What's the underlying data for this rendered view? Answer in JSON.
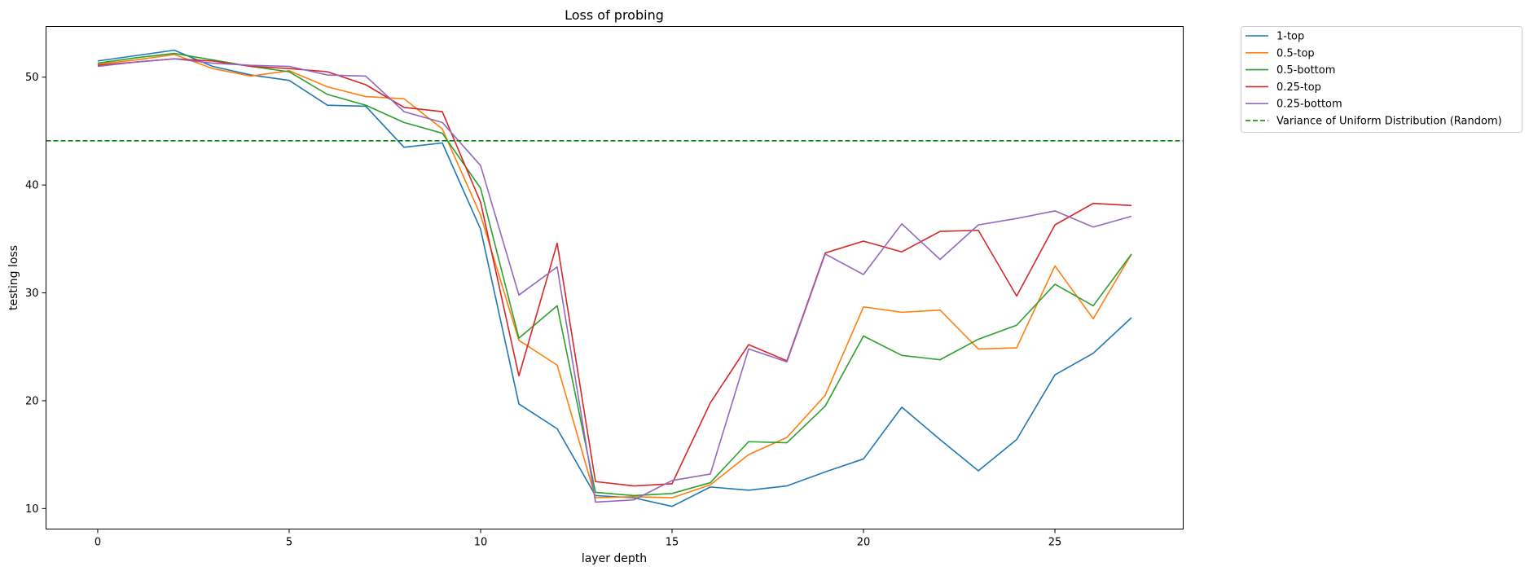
{
  "chart_data": {
    "type": "line",
    "title": "Loss of probing",
    "xlabel": "layer depth",
    "ylabel": "testing loss",
    "xlim": [
      -1.35,
      28.35
    ],
    "ylim": [
      8.1,
      54.7
    ],
    "xticks": [
      0,
      5,
      10,
      15,
      20,
      25
    ],
    "yticks": [
      10,
      20,
      30,
      40,
      50
    ],
    "grid": false,
    "legend_placement": "outside top-right",
    "x": [
      0,
      1,
      2,
      3,
      4,
      5,
      6,
      7,
      8,
      9,
      10,
      11,
      12,
      13,
      14,
      15,
      16,
      17,
      18,
      19,
      20,
      21,
      22,
      23,
      24,
      25,
      26,
      27
    ],
    "series": [
      {
        "name": "1-top",
        "color": "#1f77b4",
        "style": "solid",
        "values": [
          51.5,
          52.0,
          52.5,
          51.0,
          50.2,
          49.7,
          47.4,
          47.3,
          43.5,
          43.9,
          35.9,
          19.7,
          17.4,
          11.2,
          11.0,
          10.2,
          12.0,
          11.7,
          12.1,
          13.4,
          14.6,
          19.4,
          16.4,
          13.5,
          16.4,
          22.4,
          24.4,
          27.7
        ]
      },
      {
        "name": "0.5-top",
        "color": "#ff7f0e",
        "style": "solid",
        "values": [
          51.2,
          51.6,
          52.1,
          50.8,
          50.1,
          50.6,
          49.1,
          48.2,
          48.0,
          45.2,
          37.2,
          25.6,
          23.3,
          11.0,
          11.1,
          11.0,
          12.2,
          15.0,
          16.6,
          20.5,
          28.7,
          28.2,
          28.4,
          24.8,
          24.9,
          32.5,
          27.6,
          33.6
        ]
      },
      {
        "name": "0.5-bottom",
        "color": "#2ca02c",
        "style": "solid",
        "values": [
          51.3,
          51.8,
          52.2,
          51.6,
          51.0,
          50.5,
          48.4,
          47.4,
          45.8,
          44.8,
          39.7,
          25.8,
          28.8,
          11.5,
          11.2,
          11.4,
          12.4,
          16.2,
          16.1,
          19.5,
          26.0,
          24.2,
          23.8,
          25.7,
          27.0,
          30.8,
          28.8,
          33.6
        ]
      },
      {
        "name": "0.25-top",
        "color": "#d62728",
        "style": "solid",
        "values": [
          51.1,
          51.4,
          51.7,
          51.5,
          51.0,
          50.8,
          50.5,
          49.3,
          47.2,
          46.8,
          38.4,
          22.3,
          34.6,
          12.5,
          12.1,
          12.3,
          19.8,
          25.2,
          23.7,
          33.7,
          34.8,
          33.8,
          35.7,
          35.8,
          29.7,
          36.3,
          38.3,
          38.1
        ]
      },
      {
        "name": "0.25-bottom",
        "color": "#9467bd",
        "style": "solid",
        "values": [
          51.0,
          51.4,
          51.7,
          51.3,
          51.1,
          51.0,
          50.2,
          50.1,
          46.8,
          45.8,
          41.8,
          29.8,
          32.4,
          10.6,
          10.8,
          12.6,
          13.2,
          24.8,
          23.6,
          33.6,
          31.7,
          36.4,
          33.1,
          36.3,
          36.9,
          37.6,
          36.1,
          37.1
        ]
      },
      {
        "name": "Variance of Uniform Distribution (Random)",
        "color": "#008000",
        "style": "dashed",
        "hline": 44.1
      }
    ]
  }
}
